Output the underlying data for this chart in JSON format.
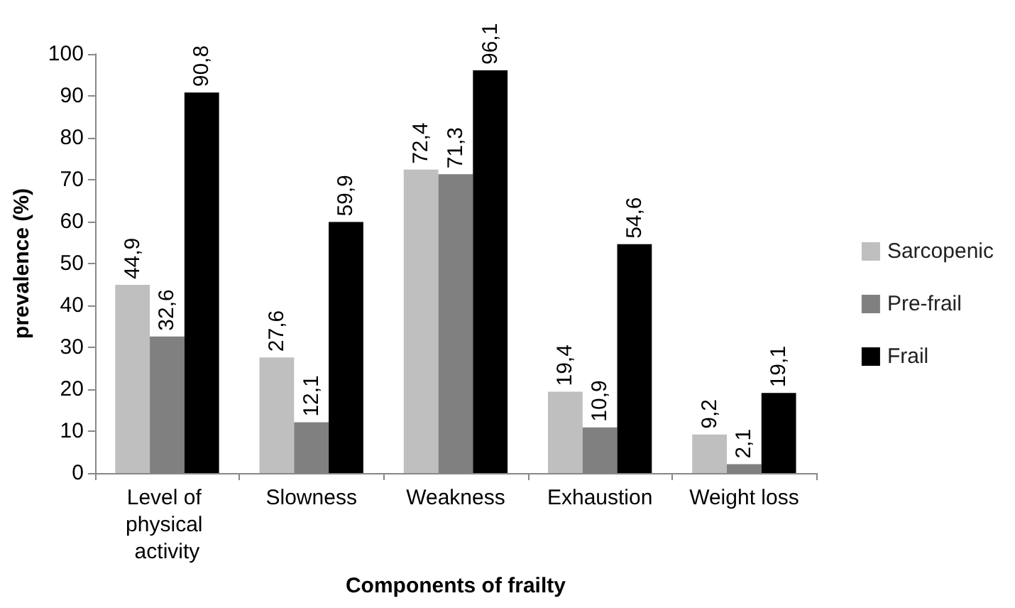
{
  "chart_data": {
    "type": "bar",
    "xlabel": "Components of frailty",
    "ylabel": "prevalence (%)",
    "categories": [
      "Level of physical activity",
      "Slowness",
      "Weakness",
      "Exhaustion",
      "Weight loss"
    ],
    "series": [
      {
        "name": "Sarcopenic",
        "color": "#bfbfbf",
        "values": [
          44.9,
          27.6,
          72.4,
          19.4,
          9.2
        ],
        "value_labels": [
          "44,9",
          "27,6",
          "72,4",
          "19,4",
          "9,2"
        ]
      },
      {
        "name": "Pre-frail",
        "color": "#808080",
        "values": [
          32.6,
          12.1,
          71.3,
          10.9,
          2.1
        ],
        "value_labels": [
          "32,6",
          "12,1",
          "71,3",
          "10,9",
          "2,1"
        ]
      },
      {
        "name": "Frail",
        "color": "#000000",
        "values": [
          90.8,
          59.9,
          96.1,
          54.6,
          19.1
        ],
        "value_labels": [
          "90,8",
          "59,9",
          "96,1",
          "54,6",
          "19,1"
        ]
      }
    ],
    "ylim": [
      0,
      100
    ],
    "yticks": [
      0,
      10,
      20,
      30,
      40,
      50,
      60,
      70,
      80,
      90,
      100
    ],
    "grid": false,
    "legend": "right"
  }
}
